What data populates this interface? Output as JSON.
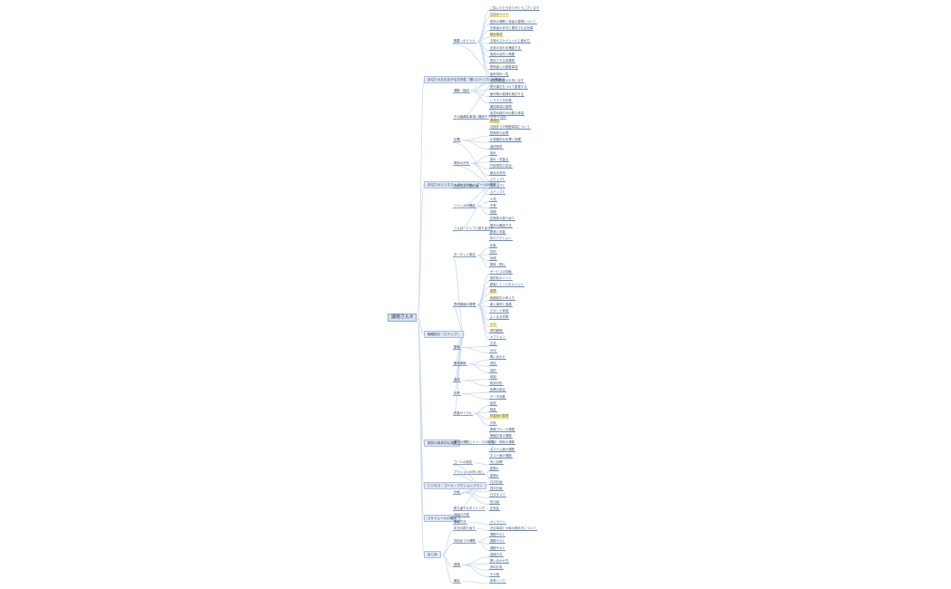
{
  "colors": {
    "connector": "#c9d9f0",
    "underline": "#5b8fd9",
    "node_fill": "#dfe8f5",
    "highlight": "#fff6b3"
  },
  "root": {
    "label": "議題さん②",
    "children": [
      {
        "label": "あなたのおおまかな方向性（第1ステップ）の確認",
        "children": [
          {
            "label": "概要・ポイント",
            "children": [
              {
                "label": "ご覧いただきありがとうございます"
              },
              {
                "label": "注目ポイント",
                "highlight": true
              },
              {
                "label": "現状の課題と背景の整理について"
              },
              {
                "label": "対象者の状況と期待される効果"
              },
              {
                "label": "補足事項",
                "highlight": true
              },
              {
                "label": "今後のスケジュールと進め方"
              },
              {
                "label": "全体の流れを確認する"
              },
              {
                "label": "実施の目的と概要"
              },
              {
                "label": "想定される成果物"
              },
              {
                "label": "関係者との調整事項"
              },
              {
                "label": "参考資料一覧"
              }
            ]
          },
          {
            "label": "課題・検討",
            "children": [
              {
                "label": "現在の問題点を洗い出す"
              },
              {
                "label": "優先順位をつけて整理する"
              },
              {
                "label": "解決策の候補を検討する"
              },
              {
                "label": "リスクと対応策"
              }
            ]
          },
          {
            "label": "その他補足事項と確認すべきポイント",
            "children": [
              {
                "label": "確認事項の整理"
              },
              {
                "label": "追加の検討が必要な事項"
              },
              {
                "label": "要確認",
                "highlight": true
              },
              {
                "label": "次回までの宿題事項について"
              }
            ]
          }
        ]
      },
      {
        "label": "あなたのビジネス・パーソナル・ゴールの確認",
        "children": [
          {
            "label": "目標",
            "children": [
              {
                "label": "短期的な目標"
              },
              {
                "label": "中長期的な目標と指標"
              },
              {
                "label": "達成基準"
              }
            ]
          },
          {
            "label": "現状の分析",
            "children": [
              {
                "label": "強み"
              },
              {
                "label": "弱み・改善点"
              },
              {
                "label": "外部環境の変化"
              },
              {
                "label": "競合の状況"
              }
            ]
          },
          {
            "label": "具体的な行動計画",
            "children": [
              {
                "label": "ステップ1"
              },
              {
                "label": "ステップ2"
              },
              {
                "label": "ステップ3"
              }
            ]
          },
          {
            "label": "リソースの確認",
            "children": [
              {
                "label": "人員"
              },
              {
                "label": "予算"
              },
              {
                "label": "時間"
              }
            ]
          },
          {
            "label": "フォローアップと振り返り",
            "children": [
              {
                "label": "定期的な振り返り"
              },
              {
                "label": "進捗の確認方法"
              },
              {
                "label": "評価と改善"
              },
              {
                "label": "次のアクション"
              }
            ]
          }
        ]
      },
      {
        "label": "戦略設計（ステップ）",
        "children": [
          {
            "label": "ターゲット設定",
            "children": [
              {
                "label": "年齢"
              },
              {
                "label": "性別"
              },
              {
                "label": "地域"
              },
              {
                "label": "興味・関心"
              }
            ]
          },
          {
            "label": "提供価値の整理",
            "children": [
              {
                "label": "サービスの特徴"
              },
              {
                "label": "差別化ポイント"
              },
              {
                "label": "顧客にとってのメリット"
              },
              {
                "label": "重要",
                "highlight": true
              },
              {
                "label": "価格設定の考え方"
              },
              {
                "label": "導入事例と実績"
              },
              {
                "label": "サポート体制"
              },
              {
                "label": "よくある質問"
              },
              {
                "label": "メモ",
                "highlight": true
              },
              {
                "label": "提供範囲"
              },
              {
                "label": "オプション"
              }
            ]
          },
          {
            "label": "集客",
            "children": [
              {
                "label": "広告"
              },
              {
                "label": "SNS"
              }
            ]
          },
          {
            "label": "販売導線",
            "children": [
              {
                "label": "問い合わせ"
              },
              {
                "label": "商談"
              },
              {
                "label": "成約"
              }
            ]
          },
          {
            "label": "運用",
            "children": [
              {
                "label": "体制"
              },
              {
                "label": "役割分担"
              }
            ]
          },
          {
            "label": "計測",
            "children": [
              {
                "label": "指標の設定"
              },
              {
                "label": "データ収集"
              }
            ]
          },
          {
            "label": "改善サイクル",
            "children": [
              {
                "label": "仮説"
              },
              {
                "label": "検証"
              },
              {
                "label": "改善案の整理",
                "highlight": true
              },
              {
                "label": "共有"
              }
            ]
          }
        ]
      },
      {
        "label": "現状の具体的な課題",
        "children": [
          {
            "label": "現状の課題とリソースの確認",
            "children": [
              {
                "label": "業務フローの課題"
              },
              {
                "label": "情報共有の課題"
              },
              {
                "label": "人材・体制の課題"
              },
              {
                "label": "システム面の課題"
              },
              {
                "label": "コスト面の課題"
              }
            ]
          }
        ]
      },
      {
        "label": "ビジネス・ゴール・アクションプラン",
        "children": [
          {
            "label": "ゴールの設定",
            "children": [
              {
                "label": "売上目標"
              }
            ]
          },
          {
            "label": "アクションの洗い出し",
            "children": [
              {
                "label": "施策A"
              },
              {
                "label": "施策B"
              }
            ]
          },
          {
            "label": "計画",
            "children": [
              {
                "label": "月次計画"
              },
              {
                "label": "週次計画"
              },
              {
                "label": "日次タスク"
              },
              {
                "label": "担当者"
              }
            ]
          },
          {
            "label": "振り返りのタイミング",
            "children": [
              {
                "label": "定例会"
              }
            ]
          }
        ]
      },
      {
        "label": "スケジュールの確認",
        "children": [
          {
            "label": "次回の日程",
            "children": []
          },
          {
            "label": "開催方法",
            "children": [
              {
                "label": "オンライン"
              }
            ]
          }
        ]
      },
      {
        "label": "まとめ",
        "children": [
          {
            "label": "本日の振り返り",
            "children": [
              {
                "label": "決定事項と今後の進め方について"
              }
            ]
          },
          {
            "label": "次回までの課題",
            "children": [
              {
                "label": "課題その1"
              },
              {
                "label": "課題その2"
              },
              {
                "label": "課題その3"
              }
            ]
          },
          {
            "label": "連絡",
            "children": [
              {
                "label": "連絡方法"
              },
              {
                "label": "問い合わせ先"
              },
              {
                "label": "資料共有"
              },
              {
                "label": "その他"
              }
            ]
          },
          {
            "label": "補足",
            "children": [
              {
                "label": "参考リンク"
              }
            ]
          }
        ]
      }
    ]
  }
}
